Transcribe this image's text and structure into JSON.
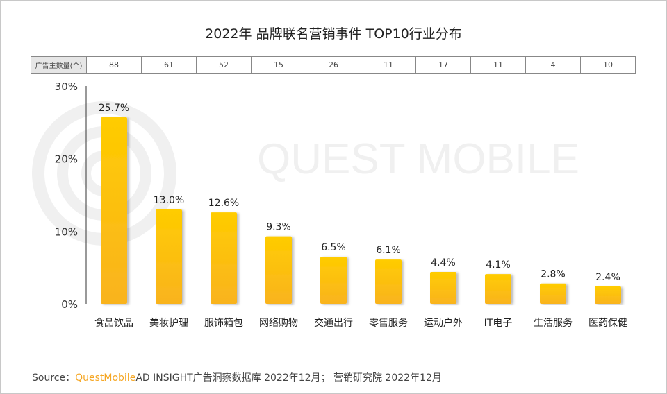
{
  "title": "2022年 品牌联名营销事件 TOP10行业分布",
  "count_row": {
    "label": "广告主数量(个)",
    "values": [
      "88",
      "61",
      "52",
      "15",
      "26",
      "11",
      "17",
      "11",
      "4",
      "10"
    ]
  },
  "watermark": "QUEST MOBILE",
  "source": {
    "prefix": "Source：",
    "brand": "QuestMobile",
    "text": "AD INSIGHT广告洞察数据库 2022年12月； 营销研究院 2022年12月"
  },
  "colors": {
    "bar_top": "#ffcc00",
    "bar_bottom": "#f9b31f",
    "brand": "#f5a623"
  },
  "chart_data": {
    "type": "bar",
    "categories": [
      "食品饮品",
      "美妆护理",
      "服饰箱包",
      "网络购物",
      "交通出行",
      "零售服务",
      "运动户外",
      "IT电子",
      "生活服务",
      "医药保健"
    ],
    "values": [
      25.7,
      13.0,
      12.6,
      9.3,
      6.5,
      6.1,
      4.4,
      4.1,
      2.8,
      2.4
    ],
    "data_labels": [
      "25.7%",
      "13.0%",
      "12.6%",
      "9.3%",
      "6.5%",
      "6.1%",
      "4.4%",
      "4.1%",
      "2.8%",
      "2.4%"
    ],
    "yticks": [
      "0%",
      "10%",
      "20%",
      "30%"
    ],
    "ytick_values": [
      0,
      10,
      20,
      30
    ],
    "ylim": [
      0,
      30
    ],
    "grid": false,
    "legend": "none"
  }
}
